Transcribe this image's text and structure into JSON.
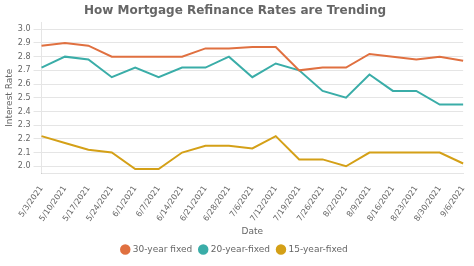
{
  "chart_data": {
    "type": "line",
    "title": "How Mortgage Refinance Rates are Trending",
    "xlabel": "Date",
    "ylabel": "Interest Rate",
    "categories": [
      "5/3/2021",
      "5/10/2021",
      "5/17/2021",
      "5/24/2021",
      "6/1/2021",
      "6/7/2021",
      "6/14/2021",
      "6/21/2021",
      "6/28/2021",
      "7/6/2021",
      "7/12/2021",
      "7/19/2021",
      "7/26/2021",
      "8/2/2021",
      "8/9/2021",
      "8/16/2021",
      "8/23/2021",
      "8/30/2021",
      "9/6/2021"
    ],
    "series": [
      {
        "name": "30-year fixed",
        "color": "#E07040",
        "values": [
          2.88,
          2.9,
          2.88,
          2.8,
          2.8,
          2.8,
          2.8,
          2.86,
          2.86,
          2.87,
          2.87,
          2.7,
          2.72,
          2.72,
          2.82,
          2.8,
          2.78,
          2.8,
          2.77
        ]
      },
      {
        "name": "20-year-fixed",
        "color": "#3AADA8",
        "values": [
          2.72,
          2.8,
          2.78,
          2.65,
          2.72,
          2.65,
          2.72,
          2.72,
          2.8,
          2.65,
          2.75,
          2.7,
          2.55,
          2.5,
          2.67,
          2.55,
          2.55,
          2.45,
          2.45
        ]
      },
      {
        "name": "15-year-fixed",
        "color": "#D4A017",
        "values": [
          2.22,
          2.17,
          2.12,
          2.1,
          1.98,
          1.98,
          2.1,
          2.15,
          2.15,
          2.13,
          2.22,
          2.05,
          2.05,
          2.0,
          2.1,
          2.1,
          2.1,
          2.1,
          2.02
        ]
      }
    ],
    "ylim": [
      1.95,
      3.05
    ],
    "yticks": [
      {
        "value": 2.0,
        "label": "2.0"
      },
      2.1,
      2.2,
      2.3,
      2.4,
      2.5,
      2.6,
      2.7,
      2.8,
      2.9,
      {
        "value": 3.0,
        "label": "3.0"
      }
    ],
    "grid": "y",
    "legend": "bottom"
  }
}
